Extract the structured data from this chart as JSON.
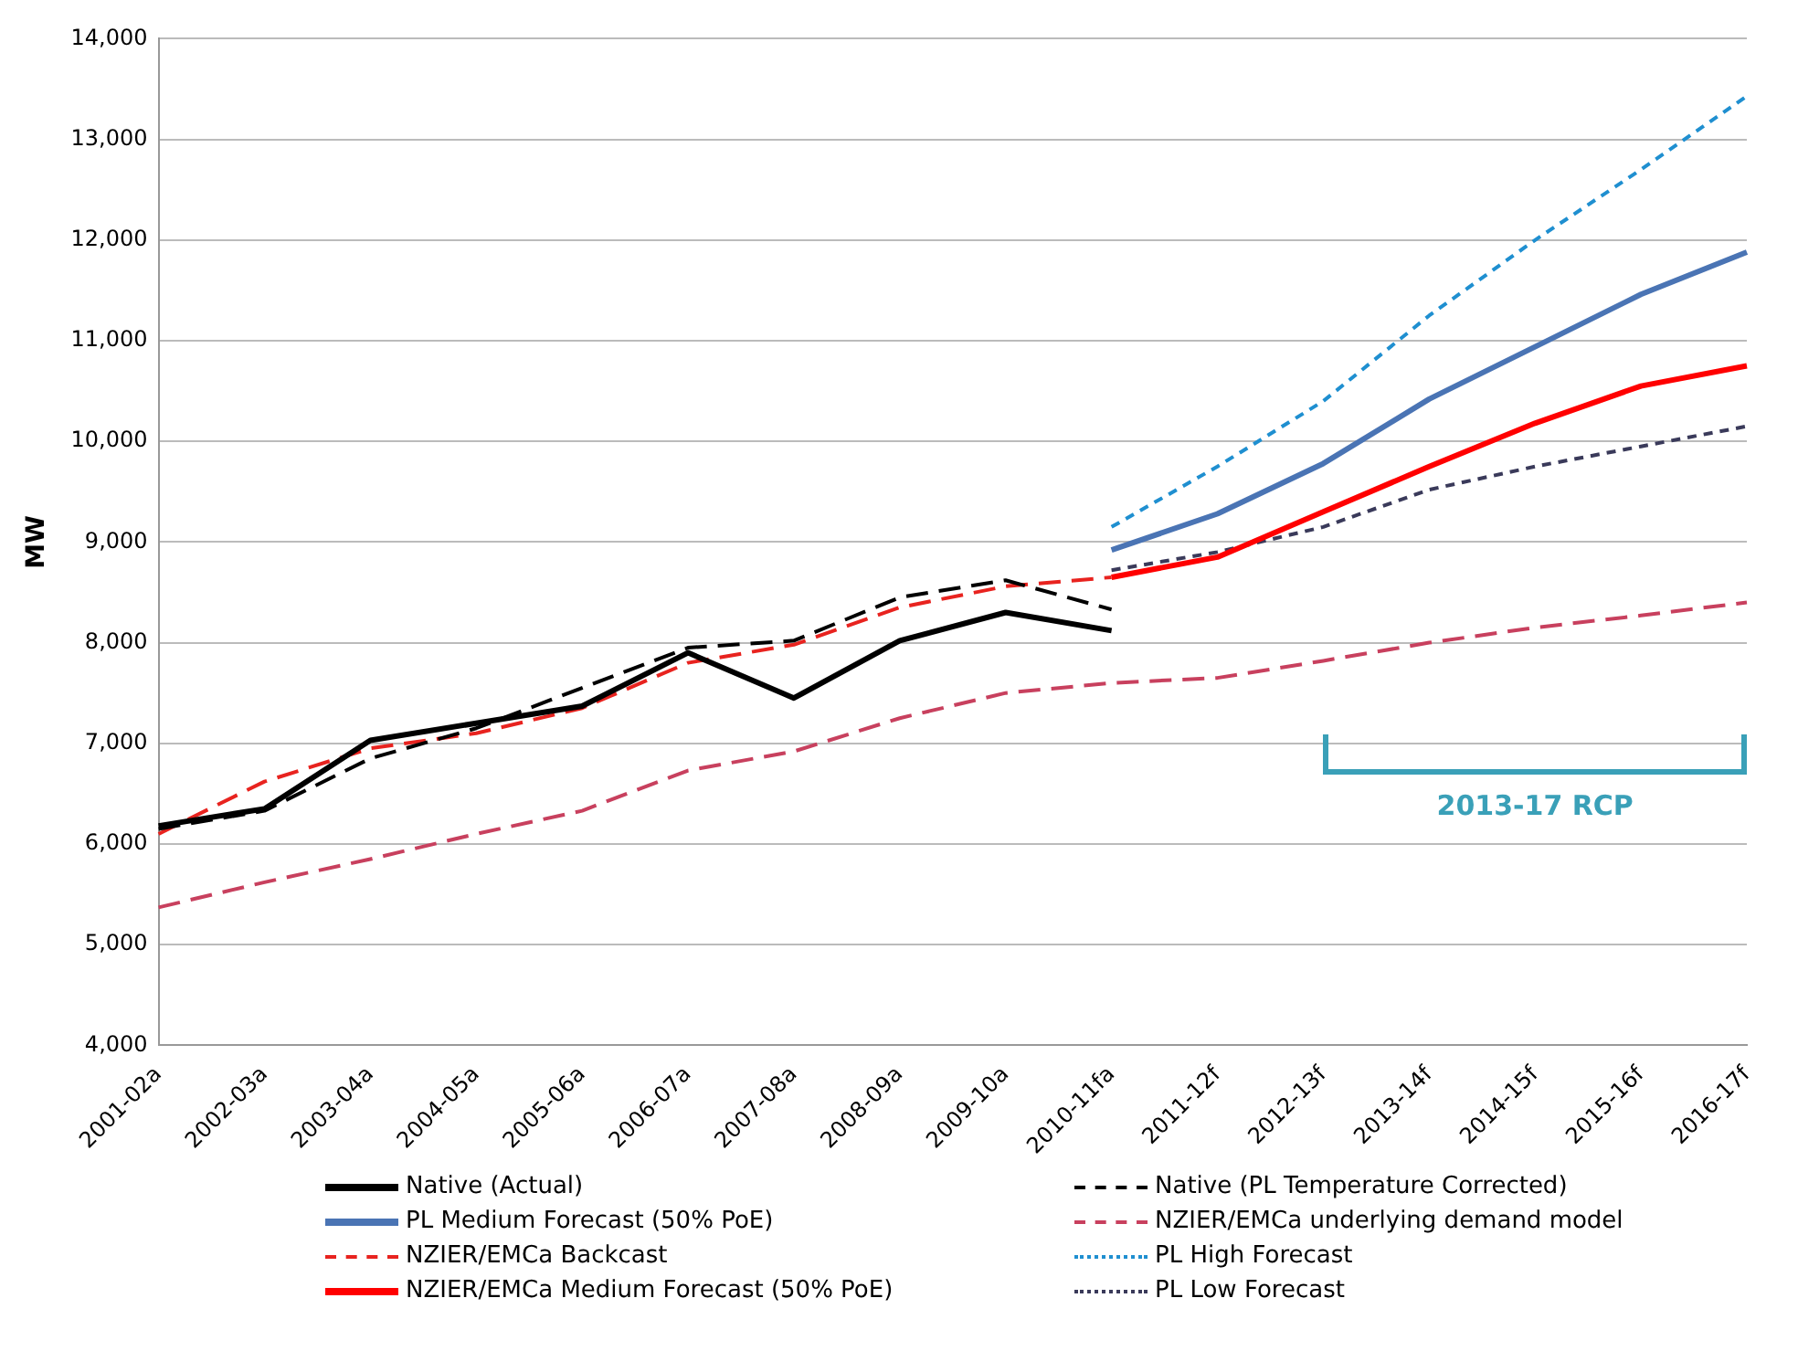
{
  "chart_data": {
    "type": "line",
    "ylabel": "MW",
    "categories": [
      "2001-02a",
      "2002-03a",
      "2003-04a",
      "2004-05a",
      "2005-06a",
      "2006-07a",
      "2007-08a",
      "2008-09a",
      "2009-10a",
      "2010-11fa",
      "2011-12f",
      "2012-13f",
      "2013-14f",
      "2014-15f",
      "2015-16f",
      "2016-17f"
    ],
    "series": [
      {
        "name": "Native (Actual)",
        "color": "#000000",
        "line_style": "solid",
        "values": [
          6180,
          6350,
          7030,
          7200,
          7370,
          7900,
          7450,
          8020,
          8300,
          8120,
          null,
          null,
          null,
          null,
          null,
          null
        ]
      },
      {
        "name": "Native (PL Temperature Corrected)",
        "color": "#000000",
        "line_style": "dashed",
        "values": [
          6150,
          6330,
          6850,
          7150,
          7550,
          7950,
          8020,
          8450,
          8620,
          8330,
          null,
          null,
          null,
          null,
          null,
          null
        ]
      },
      {
        "name": "PL Medium Forecast (50% PoE)",
        "color": "#4a74b4",
        "line_style": "solid",
        "values": [
          null,
          null,
          null,
          null,
          null,
          null,
          null,
          null,
          null,
          8920,
          9280,
          9780,
          10420,
          10940,
          11460,
          11880
        ]
      },
      {
        "name": "NZIER/EMCa underlying demand model",
        "color": "#c8405e",
        "line_style": "dashed",
        "values": [
          5370,
          5620,
          5850,
          6100,
          6330,
          6730,
          6920,
          7250,
          7500,
          7600,
          7650,
          7820,
          8000,
          8150,
          8270,
          8400
        ]
      },
      {
        "name": "NZIER/EMCa Backcast",
        "color": "#e8231f",
        "line_style": "dashed",
        "values": [
          6100,
          6620,
          6950,
          7100,
          7350,
          7800,
          7980,
          8350,
          8560,
          8650,
          null,
          null,
          null,
          null,
          null,
          null
        ]
      },
      {
        "name": "PL High Forecast",
        "color": "#1f8fd0",
        "line_style": "dotted",
        "values": [
          null,
          null,
          null,
          null,
          null,
          null,
          null,
          null,
          null,
          9150,
          9750,
          10400,
          11250,
          12000,
          12700,
          13430
        ]
      },
      {
        "name": "NZIER/EMCa Medium Forecast (50% PoE)",
        "color": "#ff0000",
        "line_style": "solid",
        "values": [
          null,
          null,
          null,
          null,
          null,
          null,
          null,
          null,
          null,
          8650,
          8850,
          9300,
          9750,
          10180,
          10550,
          10750
        ]
      },
      {
        "name": "PL Low Forecast",
        "color": "#3a3a5a",
        "line_style": "dotted",
        "values": [
          null,
          null,
          null,
          null,
          null,
          null,
          null,
          null,
          null,
          8720,
          8900,
          9150,
          9520,
          9750,
          9950,
          10150
        ]
      }
    ],
    "ylim": [
      4000,
      14000
    ],
    "yticks": [
      {
        "value": 4000,
        "label": "4,000"
      },
      {
        "value": 5000,
        "label": "5,000"
      },
      {
        "value": 6000,
        "label": "6,000"
      },
      {
        "value": 7000,
        "label": "7,000"
      },
      {
        "value": 8000,
        "label": "8,000"
      },
      {
        "value": 9000,
        "label": "9,000"
      },
      {
        "value": 10000,
        "label": "10,000"
      },
      {
        "value": 11000,
        "label": "11,000"
      },
      {
        "value": 12000,
        "label": "12,000"
      },
      {
        "value": 13000,
        "label": "13,000"
      },
      {
        "value": 14000,
        "label": "14,000"
      }
    ],
    "grid": "y",
    "legend": "bottom",
    "marker": "none",
    "annotations": [
      "2013-17 RCP"
    ]
  }
}
